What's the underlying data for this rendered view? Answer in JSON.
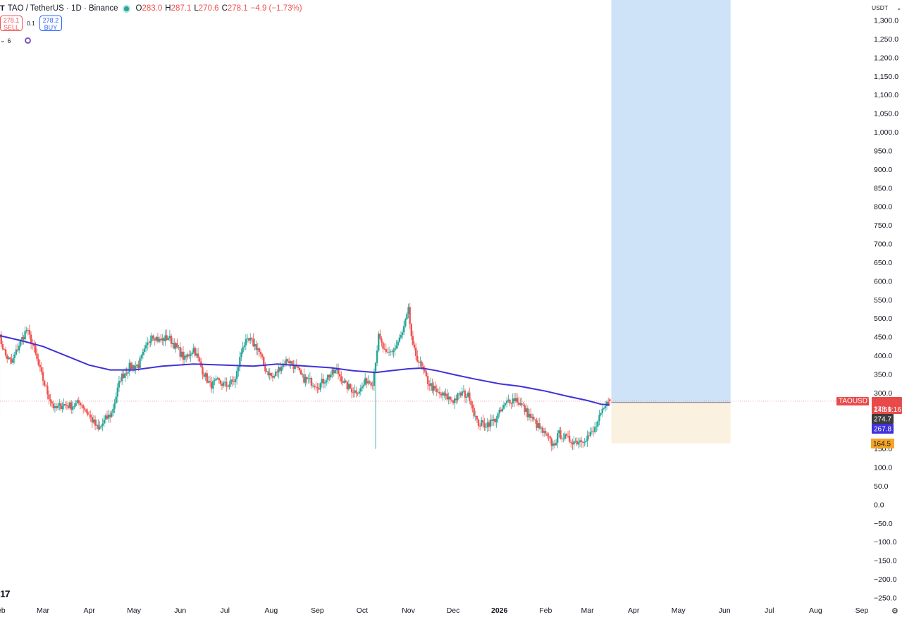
{
  "header": {
    "logo_mark": "T",
    "symbol_title": "TAO / TetherUS · 1D · Binance",
    "open_label": "O",
    "open_value": "283.0",
    "high_label": "H",
    "high_value": "287.1",
    "low_label": "L",
    "low_value": "270.6",
    "close_label": "C",
    "close_value": "278.1",
    "change": "−4.9 (−1.73%)"
  },
  "trade_buttons": {
    "sell_price": "278.1",
    "sell_label": "SELL",
    "spread": "0.1",
    "buy_price": "278.2",
    "buy_label": "BUY"
  },
  "indicator_bar": {
    "chevron": "⌄",
    "count": "6"
  },
  "currency_selector": {
    "label": "USDT",
    "chevron": "⌄"
  },
  "watermark": "17",
  "settings_icon": "⚙",
  "colors": {
    "up": "#26a69a",
    "down": "#ef5350",
    "ma": "#3f32d8",
    "profit_zone": "#cfe3f8",
    "loss_zone": "#fbf1e0",
    "price_tag": "#e84a4a",
    "ma_tag": "#3f32d8",
    "stop_tag": "#f5a623",
    "entry_tag": "#3c3c3c"
  },
  "chart_data": {
    "type": "candlestick",
    "symbol": "TAOUSDT",
    "interval": "1D",
    "ylim": [
      -250,
      1300
    ],
    "yticks": [
      1300,
      1250,
      1200,
      1150,
      1100,
      1050,
      1000,
      950,
      900,
      850,
      800,
      750,
      700,
      650,
      600,
      550,
      500,
      450,
      400,
      350,
      300,
      250,
      200,
      150,
      100,
      50,
      0,
      -50,
      -100,
      -150,
      -200,
      -250
    ],
    "xticks": [
      {
        "label": "eb",
        "date": "2025-02-01"
      },
      {
        "label": "Mar",
        "date": "2025-03-01"
      },
      {
        "label": "Apr",
        "date": "2025-04-01"
      },
      {
        "label": "May",
        "date": "2025-05-01"
      },
      {
        "label": "Jun",
        "date": "2025-06-01"
      },
      {
        "label": "Jul",
        "date": "2025-07-01"
      },
      {
        "label": "Aug",
        "date": "2025-08-01"
      },
      {
        "label": "Sep",
        "date": "2025-09-01"
      },
      {
        "label": "Oct",
        "date": "2025-10-01"
      },
      {
        "label": "Nov",
        "date": "2025-11-01"
      },
      {
        "label": "Dec",
        "date": "2025-12-01"
      },
      {
        "label": "2026",
        "date": "2026-01-01",
        "bold": true
      },
      {
        "label": "Feb",
        "date": "2026-02-01"
      },
      {
        "label": "Mar",
        "date": "2026-03-01"
      },
      {
        "label": "Apr",
        "date": "2026-04-01"
      },
      {
        "label": "May",
        "date": "2026-05-01"
      },
      {
        "label": "Jun",
        "date": "2026-06-01"
      },
      {
        "label": "Jul",
        "date": "2026-07-01"
      },
      {
        "label": "Aug",
        "date": "2026-08-01"
      },
      {
        "label": "Sep",
        "date": "2026-09-01"
      }
    ],
    "close_anchors": [
      [
        "2025-01-30",
        460
      ],
      [
        "2025-02-04",
        400
      ],
      [
        "2025-02-08",
        380
      ],
      [
        "2025-02-13",
        430
      ],
      [
        "2025-02-18",
        470
      ],
      [
        "2025-02-22",
        430
      ],
      [
        "2025-02-27",
        360
      ],
      [
        "2025-03-04",
        300
      ],
      [
        "2025-03-09",
        255
      ],
      [
        "2025-03-14",
        270
      ],
      [
        "2025-03-20",
        265
      ],
      [
        "2025-03-26",
        275
      ],
      [
        "2025-04-01",
        240
      ],
      [
        "2025-04-07",
        200
      ],
      [
        "2025-04-12",
        230
      ],
      [
        "2025-04-16",
        245
      ],
      [
        "2025-04-22",
        340
      ],
      [
        "2025-04-28",
        370
      ],
      [
        "2025-05-04",
        375
      ],
      [
        "2025-05-09",
        420
      ],
      [
        "2025-05-13",
        460
      ],
      [
        "2025-05-18",
        440
      ],
      [
        "2025-05-24",
        450
      ],
      [
        "2025-05-30",
        420
      ],
      [
        "2025-06-04",
        390
      ],
      [
        "2025-06-10",
        420
      ],
      [
        "2025-06-16",
        360
      ],
      [
        "2025-06-21",
        320
      ],
      [
        "2025-06-26",
        330
      ],
      [
        "2025-07-02",
        320
      ],
      [
        "2025-07-08",
        335
      ],
      [
        "2025-07-13",
        430
      ],
      [
        "2025-07-18",
        440
      ],
      [
        "2025-07-23",
        420
      ],
      [
        "2025-07-28",
        365
      ],
      [
        "2025-08-02",
        340
      ],
      [
        "2025-08-07",
        370
      ],
      [
        "2025-08-12",
        390
      ],
      [
        "2025-08-17",
        370
      ],
      [
        "2025-08-22",
        340
      ],
      [
        "2025-08-28",
        330
      ],
      [
        "2025-09-02",
        320
      ],
      [
        "2025-09-08",
        345
      ],
      [
        "2025-09-14",
        360
      ],
      [
        "2025-09-20",
        320
      ],
      [
        "2025-09-26",
        305
      ],
      [
        "2025-09-30",
        310
      ],
      [
        "2025-10-04",
        335
      ],
      [
        "2025-10-08",
        330
      ],
      [
        "2025-10-12",
        450
      ],
      [
        "2025-10-17",
        400
      ],
      [
        "2025-10-23",
        420
      ],
      [
        "2025-10-28",
        460
      ],
      [
        "2025-11-01",
        520
      ],
      [
        "2025-11-04",
        420
      ],
      [
        "2025-11-08",
        385
      ],
      [
        "2025-11-14",
        330
      ],
      [
        "2025-11-20",
        300
      ],
      [
        "2025-11-26",
        290
      ],
      [
        "2025-12-01",
        280
      ],
      [
        "2025-12-07",
        300
      ],
      [
        "2025-12-12",
        290
      ],
      [
        "2025-12-17",
        220
      ],
      [
        "2025-12-22",
        215
      ],
      [
        "2025-12-28",
        225
      ],
      [
        "2026-01-02",
        250
      ],
      [
        "2026-01-07",
        280
      ],
      [
        "2026-01-12",
        285
      ],
      [
        "2026-01-18",
        255
      ],
      [
        "2026-01-23",
        230
      ],
      [
        "2026-01-28",
        205
      ],
      [
        "2026-02-02",
        180
      ],
      [
        "2026-02-06",
        160
      ],
      [
        "2026-02-10",
        190
      ],
      [
        "2026-02-16",
        175
      ],
      [
        "2026-02-22",
        170
      ],
      [
        "2026-02-28",
        180
      ],
      [
        "2026-03-05",
        195
      ],
      [
        "2026-03-10",
        240
      ],
      [
        "2026-03-14",
        270
      ],
      [
        "2026-03-16",
        278.1
      ]
    ],
    "spikes": [
      {
        "date": "2025-10-10",
        "low": 150
      },
      {
        "date": "2025-11-01",
        "high": 540
      },
      {
        "date": "2025-01-31",
        "low": 230
      }
    ],
    "last_candle": {
      "date": "2026-03-16",
      "open": 283.0,
      "high": 287.1,
      "low": 270.6,
      "close": 278.1
    },
    "moving_average": {
      "points": [
        [
          "2025-01-30",
          455
        ],
        [
          "2025-02-15",
          440
        ],
        [
          "2025-03-01",
          425
        ],
        [
          "2025-04-01",
          375
        ],
        [
          "2025-04-15",
          362
        ],
        [
          "2025-05-01",
          362
        ],
        [
          "2025-05-20",
          372
        ],
        [
          "2025-06-10",
          378
        ],
        [
          "2025-07-01",
          375
        ],
        [
          "2025-07-20",
          372
        ],
        [
          "2025-08-05",
          378
        ],
        [
          "2025-08-25",
          372
        ],
        [
          "2025-09-10",
          368
        ],
        [
          "2025-09-25",
          360
        ],
        [
          "2025-10-10",
          355
        ],
        [
          "2025-10-20",
          360
        ],
        [
          "2025-11-01",
          365
        ],
        [
          "2025-11-10",
          367
        ],
        [
          "2025-11-20",
          360
        ],
        [
          "2025-12-01",
          350
        ],
        [
          "2025-12-15",
          338
        ],
        [
          "2026-01-01",
          325
        ],
        [
          "2026-01-15",
          318
        ],
        [
          "2026-02-01",
          305
        ],
        [
          "2026-02-15",
          292
        ],
        [
          "2026-03-01",
          280
        ],
        [
          "2026-03-10",
          270
        ],
        [
          "2026-03-16",
          267.8
        ]
      ]
    },
    "position_tool": {
      "start": "2026-03-17",
      "end": "2026-06-05",
      "entry": 274.7,
      "target": 1300,
      "stop": 164.5
    },
    "price_labels": [
      {
        "text": "TAOUSDT",
        "value": 278.1,
        "kind": "symbol"
      },
      {
        "text": "278.1",
        "value": 278.1,
        "kind": "price"
      },
      {
        "text": "14:59:16",
        "value": 278.1,
        "kind": "countdown"
      },
      {
        "text": "274.7",
        "value": 274.7,
        "kind": "entry"
      },
      {
        "text": "267.8",
        "value": 267.8,
        "kind": "ma"
      },
      {
        "text": "164.5",
        "value": 164.5,
        "kind": "stop"
      }
    ]
  }
}
